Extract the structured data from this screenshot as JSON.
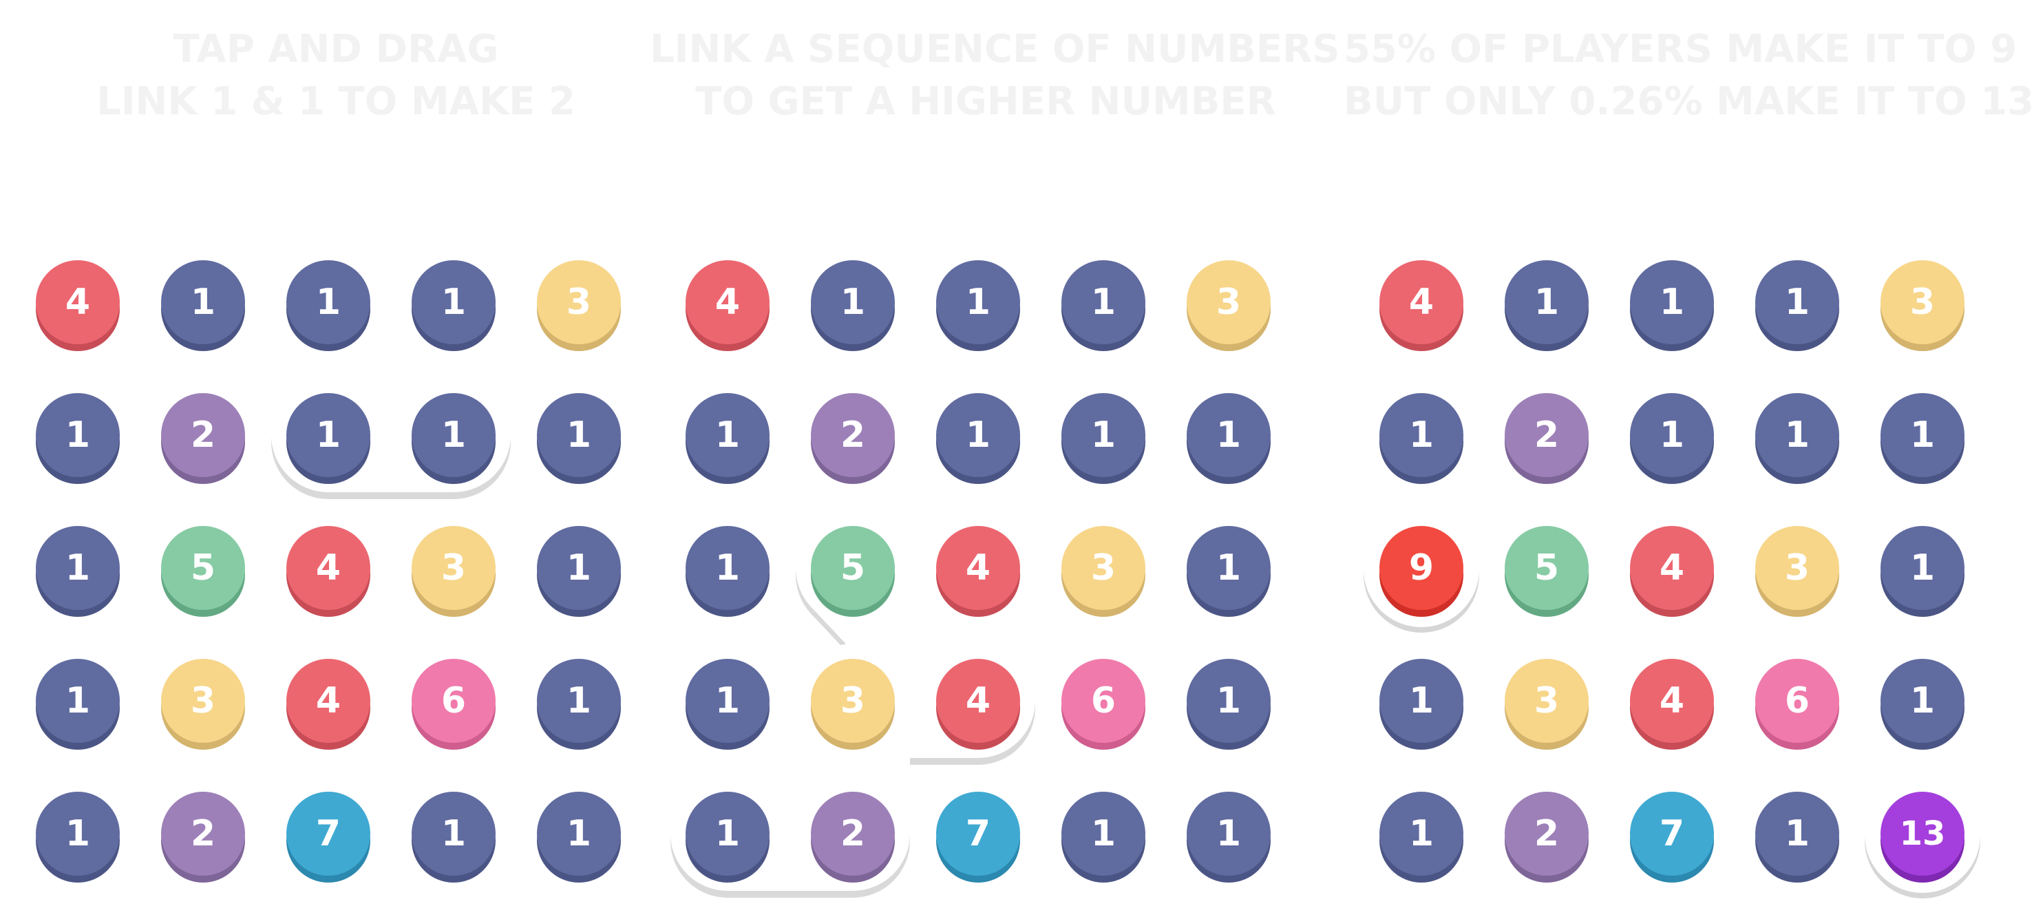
{
  "colors": {
    "1": "#606ba0",
    "2": "#9d80b8",
    "3": "#f7d68a",
    "4": "#ec6670",
    "5": "#86cba4",
    "6": "#f07aab",
    "7": "#3fa9d2",
    "9": "#f24a40",
    "13": "#a43fdd"
  },
  "shade_colors": {
    "1": "#4b5585",
    "2": "#7e6598",
    "3": "#d4b36c",
    "4": "#c84c56",
    "5": "#62a983",
    "6": "#cf5d8e",
    "7": "#2b88ae",
    "9": "#cf2f27",
    "13": "#7f28b2"
  },
  "panels": [
    {
      "caption": [
        "TAP AND DRAG",
        "LINK 1 & 1 TO MAKE 2"
      ],
      "grid": [
        [
          4,
          1,
          1,
          1,
          3
        ],
        [
          1,
          2,
          1,
          1,
          1
        ],
        [
          1,
          5,
          4,
          3,
          1
        ],
        [
          1,
          3,
          4,
          6,
          1
        ],
        [
          1,
          2,
          7,
          1,
          1
        ]
      ],
      "highlight_path": [
        [
          1,
          2
        ],
        [
          1,
          3
        ]
      ]
    },
    {
      "caption": [
        "LINK A SEQUENCE OF NUMBERS",
        "TO GET A HIGHER NUMBER"
      ],
      "grid": [
        [
          4,
          1,
          1,
          1,
          3
        ],
        [
          1,
          2,
          1,
          1,
          1
        ],
        [
          1,
          5,
          4,
          3,
          1
        ],
        [
          1,
          3,
          4,
          6,
          1
        ],
        [
          1,
          2,
          7,
          1,
          1
        ]
      ],
      "highlight_path": [
        [
          4,
          0
        ],
        [
          4,
          1
        ],
        [
          3,
          1
        ],
        [
          3,
          2
        ],
        [
          2,
          1
        ]
      ]
    },
    {
      "caption": [
        "55% OF PLAYERS MAKE IT TO 9",
        "BUT ONLY 0.26% MAKE IT TO 13"
      ],
      "grid": [
        [
          4,
          1,
          1,
          1,
          3
        ],
        [
          1,
          2,
          1,
          1,
          1
        ],
        [
          9,
          5,
          4,
          3,
          1
        ],
        [
          1,
          3,
          4,
          6,
          1
        ],
        [
          1,
          2,
          7,
          1,
          13
        ]
      ],
      "highlight_cells": [
        [
          2,
          0
        ],
        [
          4,
          4
        ]
      ]
    }
  ]
}
